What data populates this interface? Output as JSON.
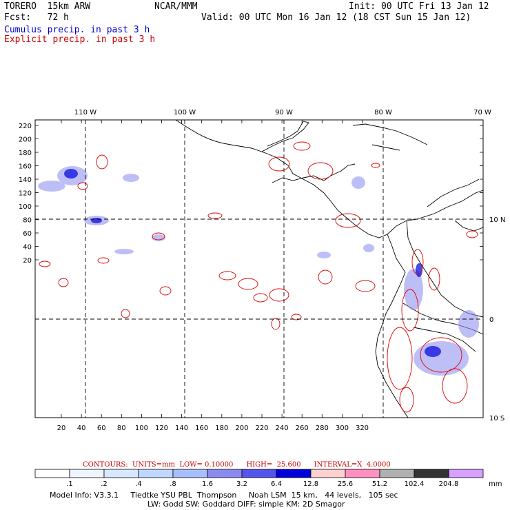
{
  "header": {
    "model": "TORERO  15km ARW",
    "org": "NCAR/MMM",
    "init": "Init: 00 UTC Fri 13 Jan 12",
    "fcst": "Fcst:   72 h",
    "valid": "Valid: 00 UTC Mon 16 Jan 12 (18 CST Sun 15 Jan 12)",
    "line_cumulus": "Cumulus precip. in past 3 h",
    "line_explicit": "Explicit precip. in past 3 h"
  },
  "axes": {
    "top_lon_labels": [
      "110 W",
      "100 W",
      "90 W",
      "80 W",
      "70 W"
    ],
    "right_lat_labels": [
      "10 N",
      "0",
      "10 S"
    ],
    "left_y_ticks": [
      "220",
      "200",
      "180",
      "160",
      "140",
      "120",
      "100",
      "80",
      "60",
      "40",
      "20"
    ],
    "bottom_x_ticks": [
      "20",
      "40",
      "60",
      "80",
      "100",
      "120",
      "140",
      "160",
      "180",
      "200",
      "220",
      "240",
      "260",
      "280",
      "300",
      "320"
    ]
  },
  "contour_info": {
    "label": "CONTOURS:  UNITS=mm  LOW= 0.10000      HIGH=  25.600      INTERVAL=X  4.0000"
  },
  "colorbar": {
    "labels": [
      ".1",
      ".2",
      ".4",
      ".8",
      "1.6",
      "3.2",
      "6.4",
      "12.8",
      "25.6",
      "51.2",
      "102.4",
      "204.8"
    ],
    "unit": "mm",
    "colors": [
      "#ffffff",
      "#eef5ff",
      "#d8e8ff",
      "#c0d8ff",
      "#a8bfff",
      "#8a8af0",
      "#5555ee",
      "#0000dd",
      "#ffd0d0",
      "#ff90c0",
      "#b0b0b0",
      "#333333",
      "#d8a0ff"
    ]
  },
  "model_info": {
    "line1": "Model Info: V3.3.1     Tiedtke YSU PBL  Thompson     Noah LSM  15 km,   44 levels,   105 sec",
    "line2": "LW: Godd SW: Goddard DIFF: simple KM: 2D Smagor"
  }
}
